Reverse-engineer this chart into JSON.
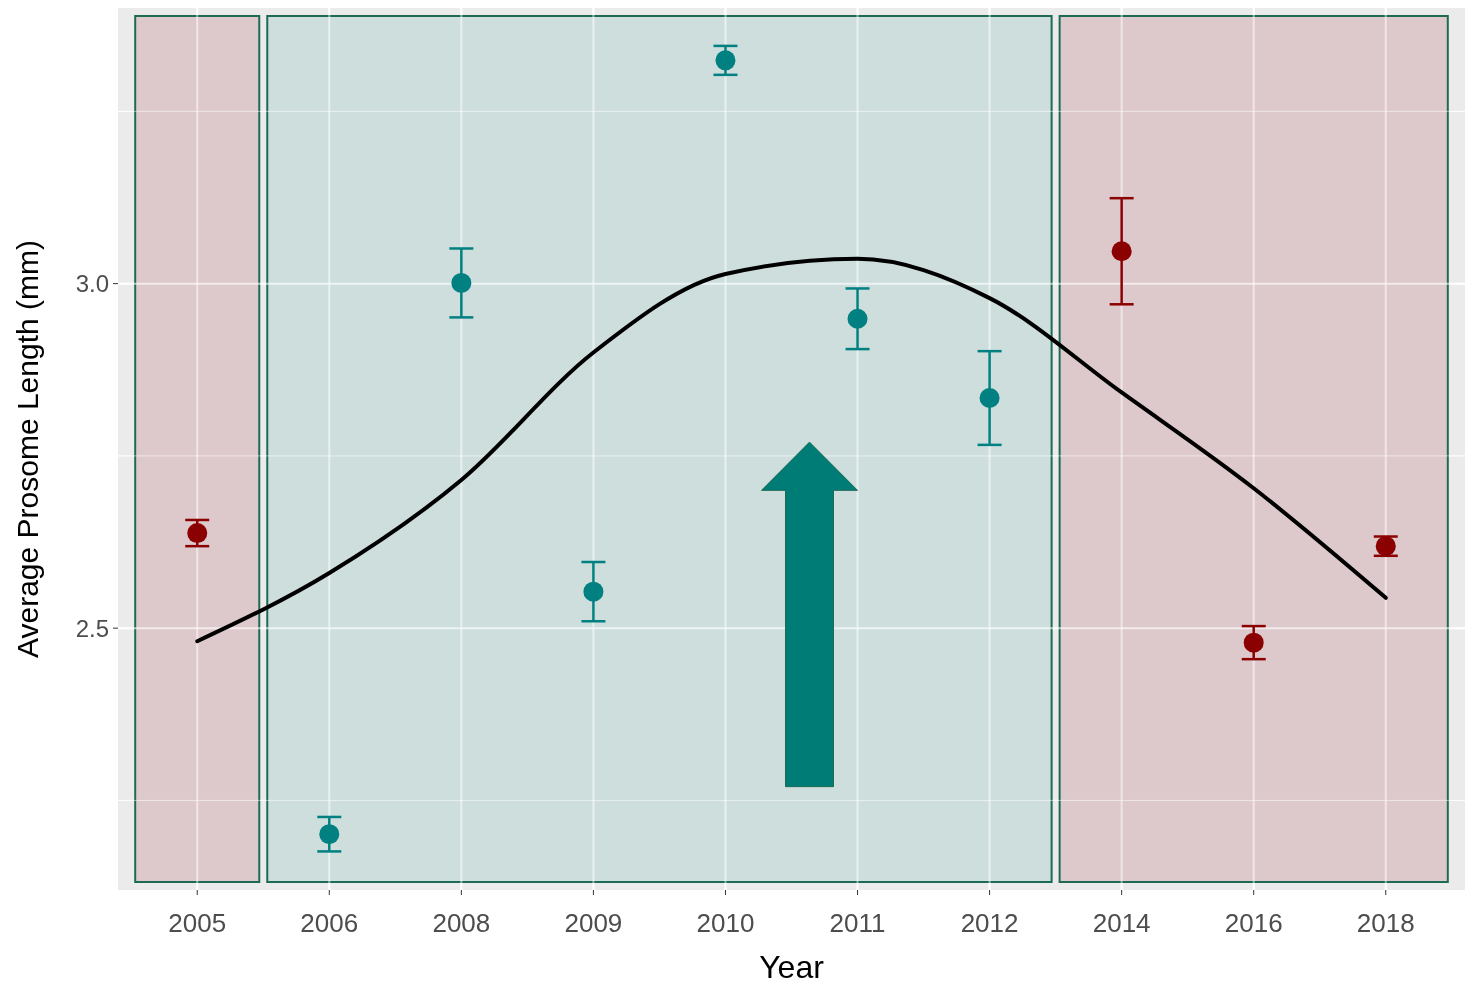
{
  "chart_data": {
    "type": "scatter",
    "xlabel": "Year",
    "ylabel": "Average Prosome Length (mm)",
    "categories": [
      "2005",
      "2006",
      "2008",
      "2009",
      "2010",
      "2011",
      "2012",
      "2014",
      "2016",
      "2018"
    ],
    "ylim": [
      2.12,
      3.4
    ],
    "yticks": [
      {
        "value": 2.5,
        "label": "2.5"
      },
      {
        "value": 3.0,
        "label": "3.0"
      }
    ],
    "grid": true,
    "bands": [
      {
        "axis": "x",
        "from": "2005",
        "to": "2005",
        "color": "#dbc3c5"
      },
      {
        "axis": "x",
        "from": "2006",
        "to": "2012",
        "color": "#c8dcdb"
      },
      {
        "axis": "x",
        "from": "2014",
        "to": "2018",
        "color": "#dbc3c5"
      }
    ],
    "series": [
      {
        "type": "line",
        "color": "#000000",
        "marker": "none",
        "line_style": "solid",
        "values": [
          2.481,
          2.58,
          2.715,
          2.9,
          3.014,
          3.036,
          2.979,
          2.842,
          2.703,
          2.544
        ]
      },
      {
        "marker": "circle",
        "colors": [
          "#8b0000",
          "#008080",
          "#008080",
          "#008080",
          "#008080",
          "#008080",
          "#008080",
          "#8b0000",
          "#8b0000",
          "#8b0000"
        ],
        "values": [
          2.638,
          2.201,
          3.001,
          2.553,
          3.324,
          2.949,
          2.834,
          3.047,
          2.479,
          2.619
        ],
        "errors": [
          0.019,
          0.025,
          0.05,
          0.043,
          0.021,
          0.044,
          0.068,
          0.077,
          0.024,
          0.014
        ]
      }
    ]
  }
}
